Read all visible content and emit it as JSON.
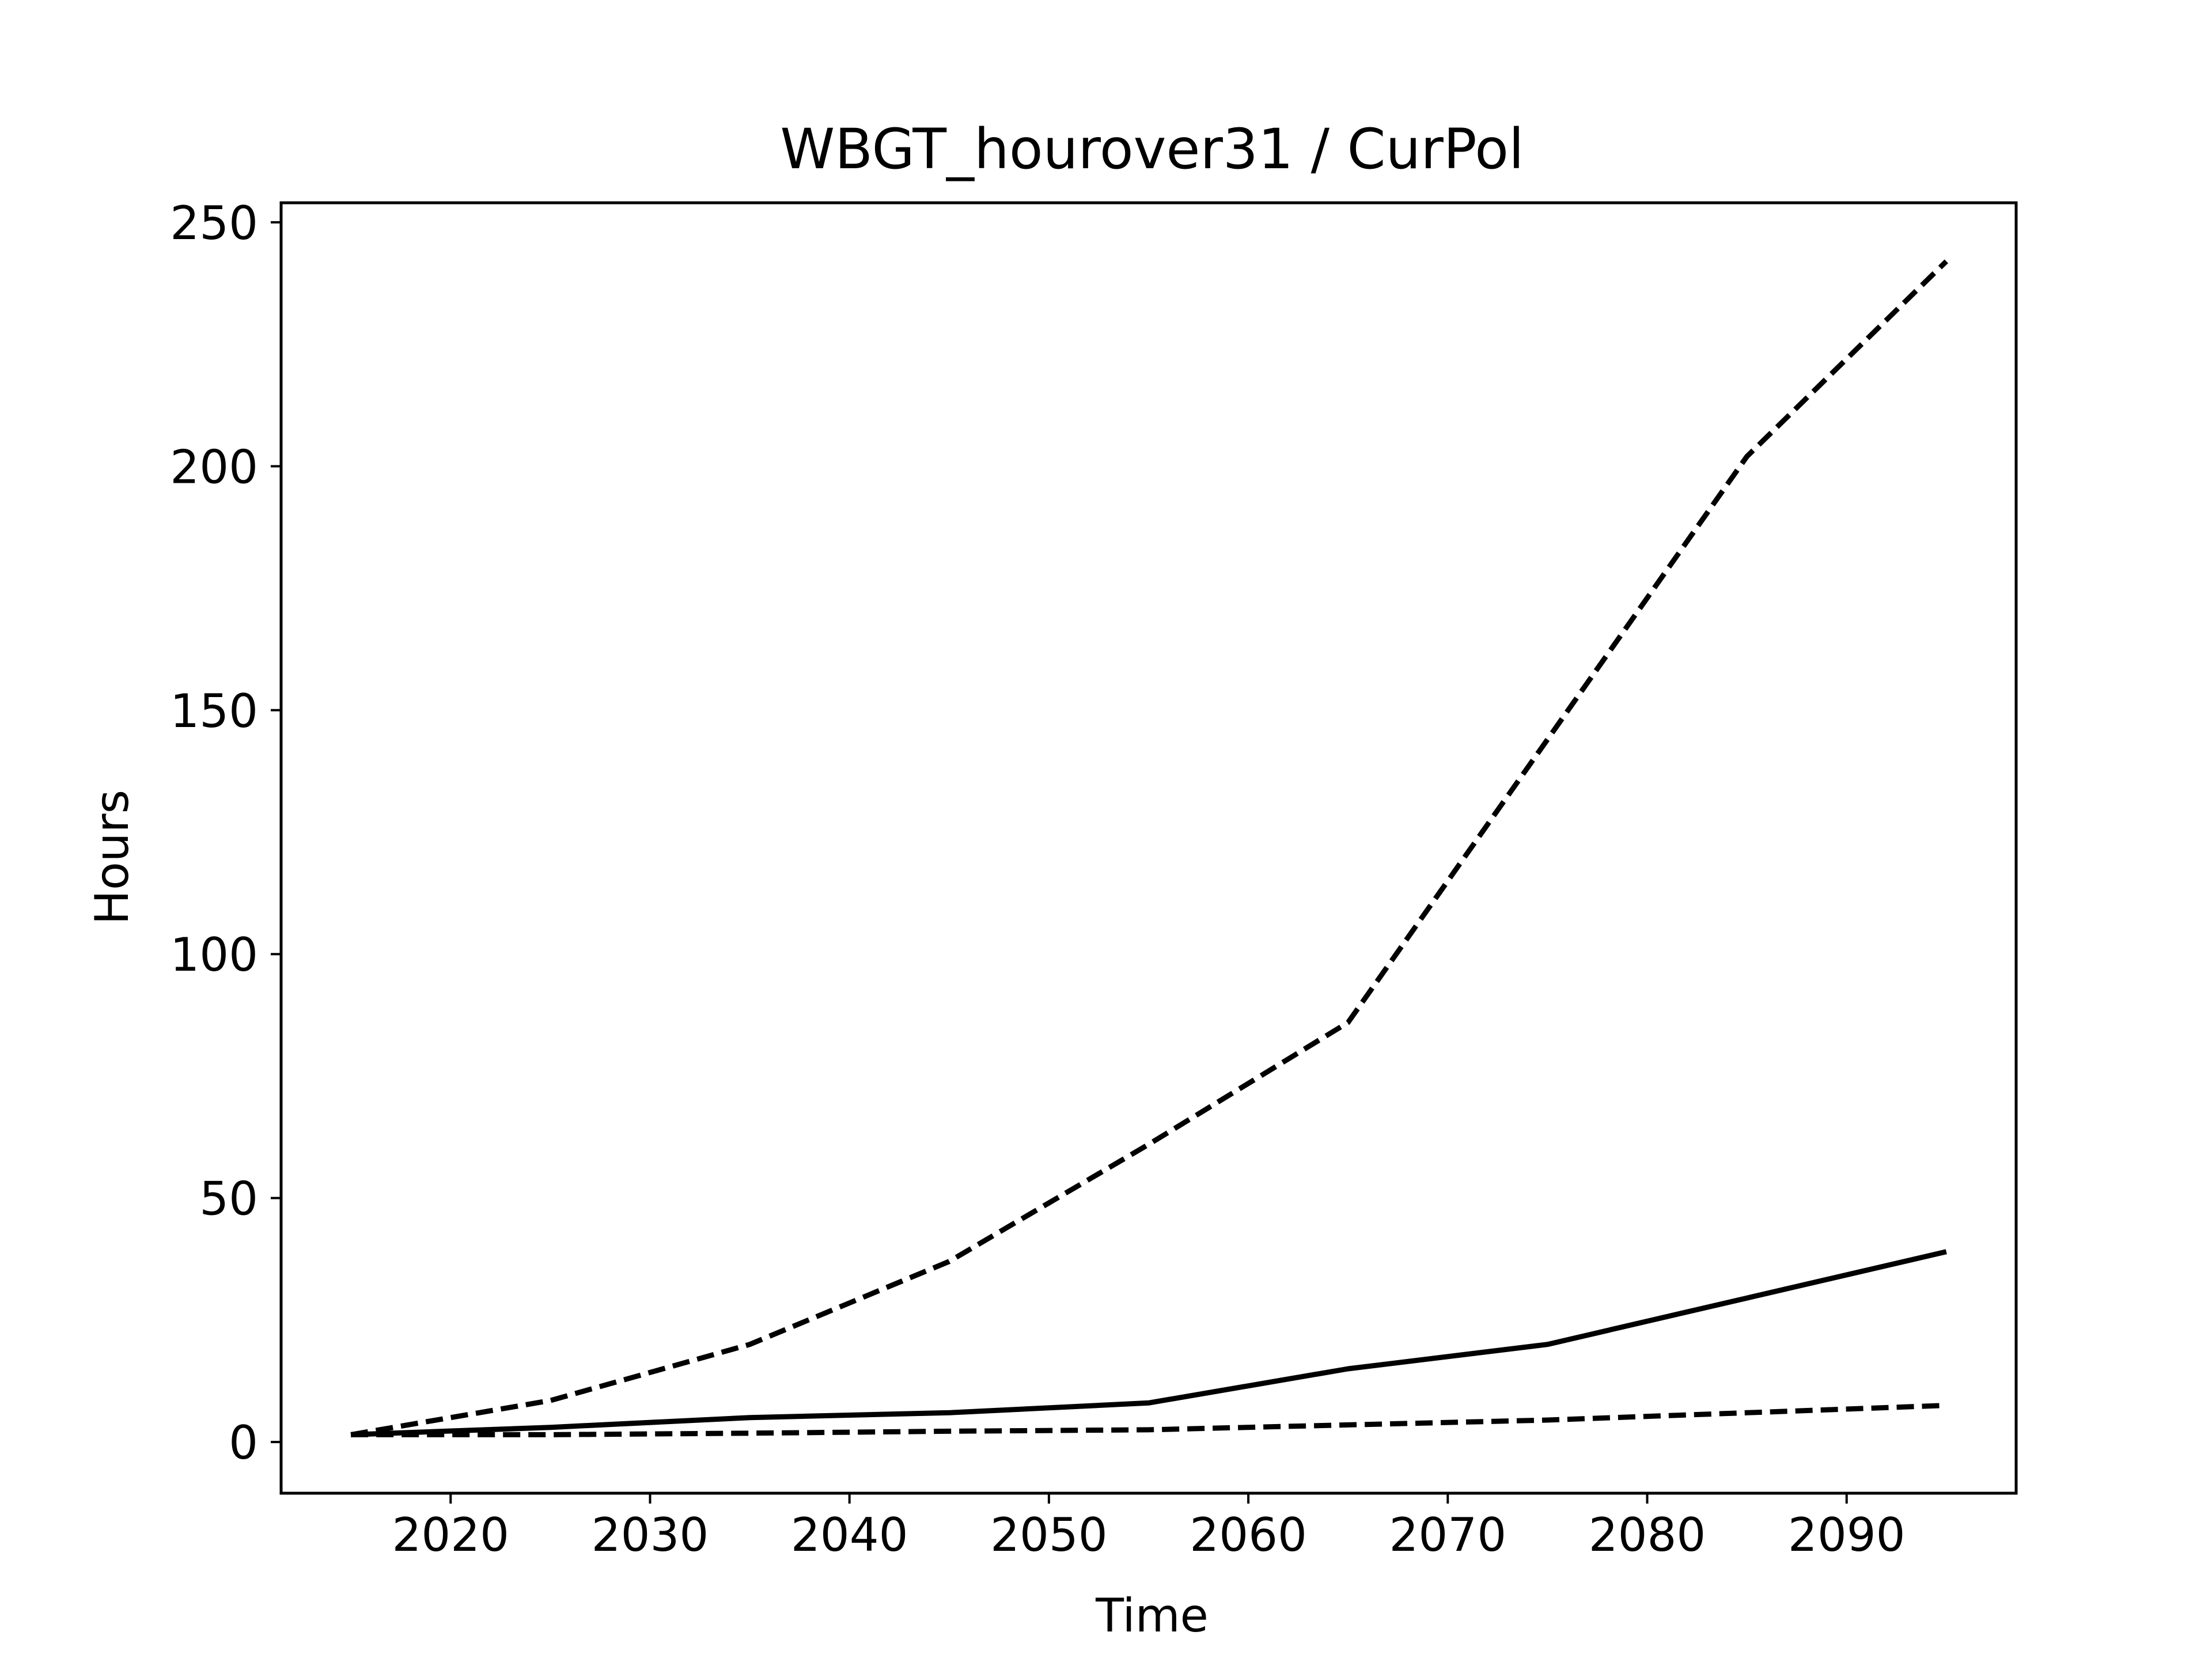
{
  "chart_data": {
    "type": "line",
    "title": "WBGT_hourover31 / CurPol",
    "xlabel": "Time",
    "ylabel": "Hours",
    "xlim": [
      2011.5,
      2098.5
    ],
    "ylim": [
      -10.5,
      254
    ],
    "xticks": [
      2020,
      2030,
      2040,
      2050,
      2060,
      2070,
      2080,
      2090
    ],
    "yticks": [
      0,
      50,
      100,
      150,
      200,
      250
    ],
    "grid": false,
    "legend": "none",
    "x": [
      2015,
      2025,
      2035,
      2045,
      2055,
      2065,
      2075,
      2085,
      2095
    ],
    "series": [
      {
        "style": "solid",
        "color": "#000000",
        "values": [
          1.5,
          3,
          5,
          6,
          8,
          15,
          20,
          29.5,
          39
        ]
      },
      {
        "style": "dashed",
        "color": "#000000",
        "values": [
          1.5,
          8.5,
          20,
          37,
          61,
          86,
          144,
          202,
          242
        ]
      },
      {
        "style": "dashed",
        "color": "#000000",
        "values": [
          1.5,
          1.5,
          1.8,
          2.2,
          2.5,
          3.5,
          4.5,
          6,
          7.5
        ]
      }
    ]
  }
}
